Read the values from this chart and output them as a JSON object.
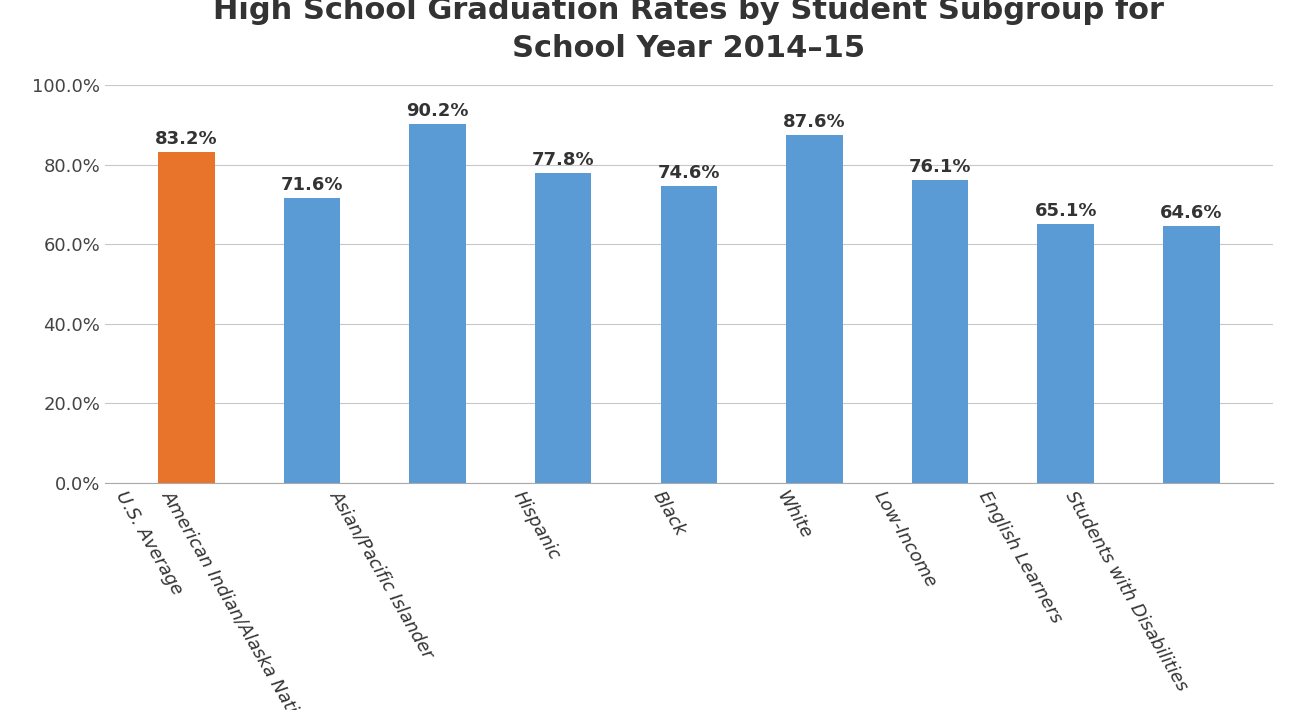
{
  "title": "High School Graduation Rates by Student Subgroup for\nSchool Year 2014–15",
  "categories": [
    "U.S. Average",
    "American Indian/Alaska Native",
    "Asian/Pacific Islander",
    "Hispanic",
    "Black",
    "White",
    "Low-Income",
    "English Learners",
    "Students with Disabilities"
  ],
  "values": [
    83.2,
    71.6,
    90.2,
    77.8,
    74.6,
    87.6,
    76.1,
    65.1,
    64.6
  ],
  "bar_colors": [
    "#E8732A",
    "#5B9BD5",
    "#5B9BD5",
    "#5B9BD5",
    "#5B9BD5",
    "#5B9BD5",
    "#5B9BD5",
    "#5B9BD5",
    "#5B9BD5"
  ],
  "ylim": [
    0,
    100
  ],
  "yticks": [
    0,
    20,
    40,
    60,
    80,
    100
  ],
  "ytick_labels": [
    "0.0%",
    "20.0%",
    "40.0%",
    "60.0%",
    "80.0%",
    "100.0%"
  ],
  "background_color": "#FFFFFF",
  "title_fontsize": 22,
  "label_fontsize": 13,
  "value_fontsize": 13,
  "xlabel": "",
  "ylabel": "",
  "bar_width": 0.45,
  "xlabel_rotation": -60
}
